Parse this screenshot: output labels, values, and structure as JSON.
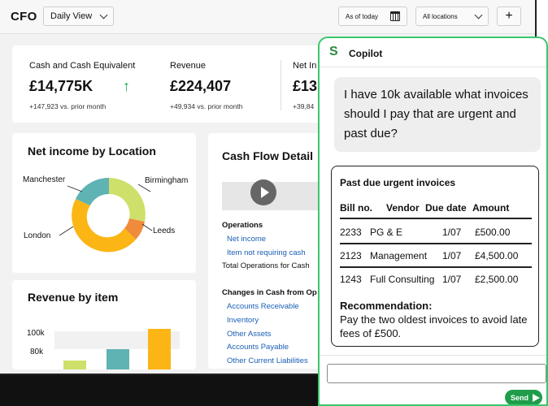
{
  "header": {
    "brand": "CFO",
    "view_select": "Daily View",
    "as_of": "As of today",
    "locations_select": "All locations",
    "add_label": "+"
  },
  "kpis": [
    {
      "label": "Cash and Cash Equivalent",
      "value": "£14,775K",
      "sub": "+147,923 vs. prior month",
      "trend": "up"
    },
    {
      "label": "Revenue",
      "value": "£224,407",
      "sub": "+49,934 vs. prior month"
    },
    {
      "label": "Net In",
      "value": "£13",
      "sub": "+39,84"
    }
  ],
  "net_income": {
    "title": "Net income by Location",
    "labels": {
      "manchester": "Manchester",
      "birmingham": "Birmingham",
      "london": "London",
      "leeds": "Leeds"
    },
    "colors": {
      "manchester": "#5fb3b3",
      "birmingham": "#cfe06a",
      "london": "#fbb515",
      "leeds": "#f08a3c"
    }
  },
  "revenue_item": {
    "title": "Revenue by item",
    "ticks": [
      "100k",
      "80k"
    ],
    "colors": [
      "#cfe06a",
      "#5fb3b3",
      "#fbb515"
    ]
  },
  "cash_flow": {
    "title": "Cash Flow Detail",
    "operations": "Operations",
    "net_income": "Net income",
    "non_cash": "Item not requiring cash",
    "total_ops": "Total Operations for Cash",
    "changes": "Changes in Cash from Op",
    "items": [
      "Accounts Receivable",
      "Inventory",
      "Other Assets",
      "Accounts Payable",
      "Other Current Liabilities"
    ]
  },
  "copilot": {
    "title": "Copilot",
    "question": "I have 10k available what invoices should I pay that are urgent and past due?",
    "answer_title": "Past due urgent invoices",
    "columns": [
      "Bill no.",
      "Vendor",
      "Due date",
      "Amount"
    ],
    "rows": [
      {
        "bill": "2233",
        "vendor": "PG & E",
        "due": "1/07",
        "amount": "£500.00"
      },
      {
        "bill": "2123",
        "vendor": "Management",
        "due": "1/07",
        "amount": "£4,500.00"
      },
      {
        "bill": "1243",
        "vendor": "Full Consulting",
        "due": "1/07",
        "amount": "£2,500.00"
      }
    ],
    "rec_title": "Recommendation:",
    "rec_text": "Pay the two oldest invoices to avoid late fees of £500.",
    "send": "Send"
  }
}
